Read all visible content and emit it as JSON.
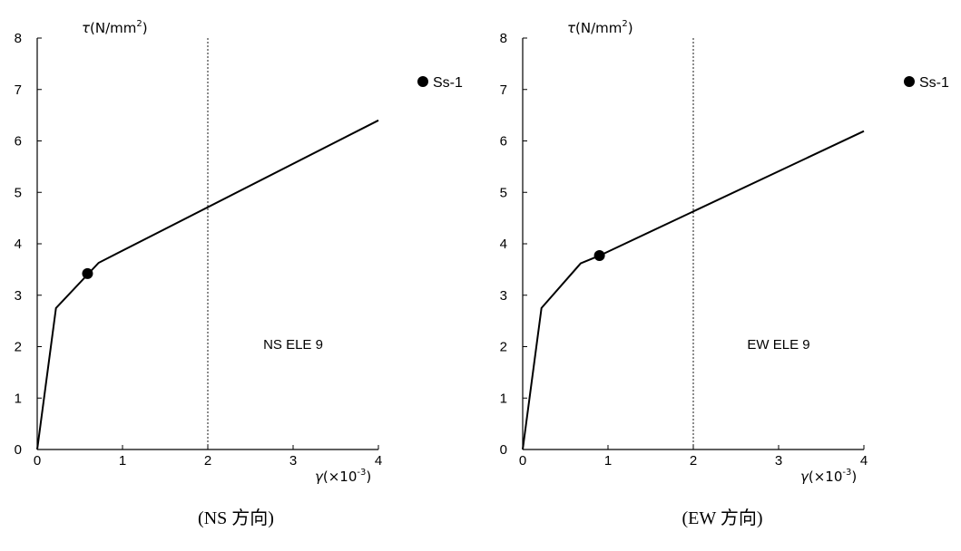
{
  "chart_data": [
    {
      "type": "line",
      "caption": "(NS 方向)",
      "annotation": "NS ELE  9",
      "ylabel_sym": "τ",
      "ylabel_unit": "(N/mm",
      "ylabel_sup": "2",
      "ylabel_close": ")",
      "xlabel_sym": "γ",
      "xlabel_unit": "(×10",
      "xlabel_sup": "-3",
      "xlabel_close": ")",
      "xlim": [
        0,
        4
      ],
      "ylim": [
        0,
        8
      ],
      "xticks": [
        "0",
        "1",
        "2",
        "3",
        "4"
      ],
      "yticks": [
        "0",
        "1",
        "2",
        "3",
        "4",
        "5",
        "6",
        "7",
        "8"
      ],
      "reference_line_x": 2,
      "curve": {
        "x": [
          0,
          0.22,
          0.72,
          4
        ],
        "y": [
          0,
          2.75,
          3.63,
          6.4
        ]
      },
      "series": [
        {
          "name": "Ss-1",
          "points": [
            {
              "x": 0.59,
              "y": 3.42
            }
          ]
        }
      ]
    },
    {
      "type": "line",
      "caption": "(EW 方向)",
      "annotation": "EW ELE  9",
      "ylabel_sym": "τ",
      "ylabel_unit": "(N/mm",
      "ylabel_sup": "2",
      "ylabel_close": ")",
      "xlabel_sym": "γ",
      "xlabel_unit": "(×10",
      "xlabel_sup": "-3",
      "xlabel_close": ")",
      "xlim": [
        0,
        4
      ],
      "ylim": [
        0,
        8
      ],
      "xticks": [
        "0",
        "1",
        "2",
        "3",
        "4"
      ],
      "yticks": [
        "0",
        "1",
        "2",
        "3",
        "4",
        "5",
        "6",
        "7",
        "8"
      ],
      "reference_line_x": 2,
      "curve": {
        "x": [
          0,
          0.22,
          0.68,
          0.9,
          4
        ],
        "y": [
          0,
          2.75,
          3.62,
          3.77,
          6.19
        ]
      },
      "series": [
        {
          "name": "Ss-1",
          "points": [
            {
              "x": 0.9,
              "y": 3.77
            }
          ]
        }
      ]
    }
  ]
}
